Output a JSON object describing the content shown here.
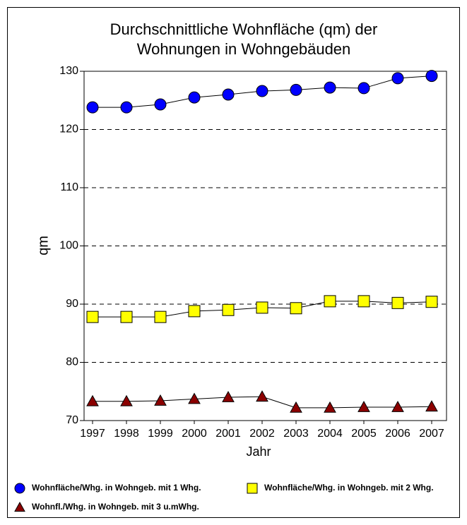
{
  "chart_data": {
    "type": "line",
    "title": [
      "Durchschnittliche Wohnfläche (qm) der",
      "Wohnungen in Wohngebäuden"
    ],
    "x_label": "Jahr",
    "y_label": "qm",
    "categories": [
      "1997",
      "1998",
      "1999",
      "2000",
      "2001",
      "2002",
      "2003",
      "2004",
      "2005",
      "2006",
      "2007"
    ],
    "ylim": [
      70,
      130
    ],
    "yticks": [
      70,
      80,
      90,
      100,
      110,
      120,
      130
    ],
    "grid": true,
    "series": [
      {
        "name": "Wohnfläche/Whg. in Wohngeb. mit 1 Whg.",
        "color": "#0000ff",
        "marker": "circle",
        "values": [
          123.8,
          123.8,
          124.3,
          125.5,
          126.0,
          126.6,
          126.8,
          127.2,
          127.1,
          128.8,
          129.2
        ]
      },
      {
        "name": "Wohnfläche/Whg. in Wohngeb. mit 2 Whg.",
        "color": "#ffff00",
        "marker": "square",
        "values": [
          87.8,
          87.8,
          87.8,
          88.8,
          89.0,
          89.4,
          89.3,
          90.5,
          90.5,
          90.2,
          90.4
        ]
      },
      {
        "name": "Wohnfl./Whg. in Wohngeb. mit 3 u.mWhg.",
        "color": "#8b0000",
        "marker": "triangle",
        "values": [
          73.3,
          73.3,
          73.4,
          73.7,
          74.0,
          74.1,
          72.2,
          72.2,
          72.3,
          72.3,
          72.4
        ]
      }
    ]
  }
}
